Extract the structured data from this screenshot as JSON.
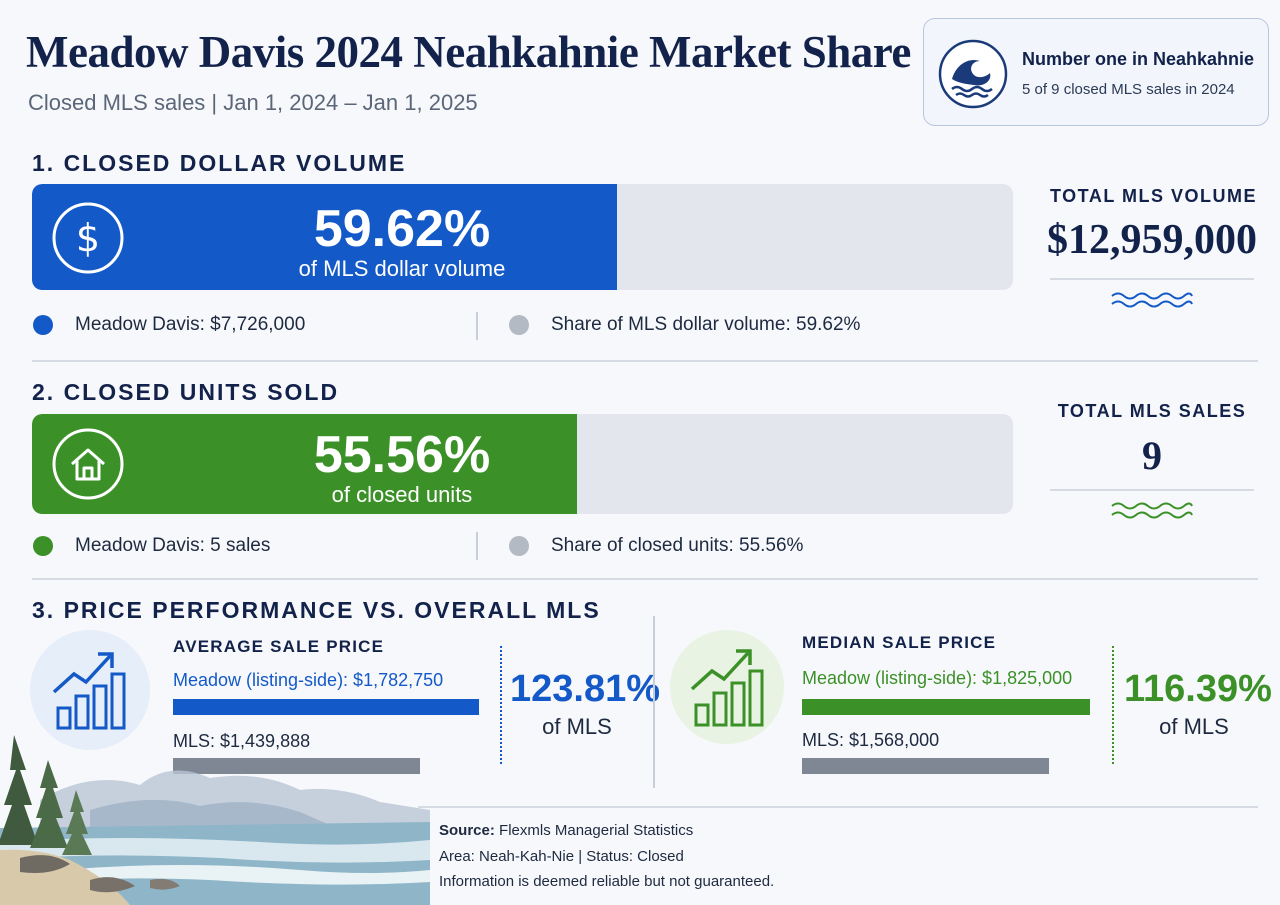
{
  "header": {
    "title": "Meadow Davis 2024  Neahkahnie Market Share",
    "subtitle": "Closed MLS sales  |  Jan 1, 2024 – Jan 1, 2025"
  },
  "badge": {
    "title": "Number one in Neahkahnie",
    "subtitle": "5 of 9 closed MLS sales in 2024",
    "icon": "wave-icon"
  },
  "colors": {
    "navy": "#12224a",
    "blue": "#1459c8",
    "green": "#3b9128",
    "track": "#e3e6ed",
    "mls_gray": "#7f8794"
  },
  "sections": {
    "volume": {
      "heading": "1. CLOSED DOLLAR VOLUME",
      "percent_text": "59.62%",
      "percent_caption": "of MLS dollar volume",
      "legend_primary": "Meadow Davis: $7,726,000",
      "legend_secondary": "Share of MLS dollar volume: 59.62%",
      "total_label": "TOTAL MLS VOLUME",
      "total_value": "$12,959,000",
      "icon": "dollar-icon"
    },
    "units": {
      "heading": "2. CLOSED UNITS SOLD",
      "percent_text": "55.56%",
      "percent_caption": "of closed units",
      "legend_primary": "Meadow Davis: 5 sales",
      "legend_secondary": "Share of closed units: 55.56%",
      "total_label": "TOTAL MLS SALES",
      "total_value": "9",
      "icon": "house-icon"
    },
    "price": {
      "heading": "3. PRICE PERFORMANCE VS. OVERALL MLS",
      "average": {
        "label": "AVERAGE SALE PRICE",
        "meadow_text": "Meadow (listing-side): $1,782,750",
        "mls_text": "MLS: $1,439,888",
        "ratio": "123.81%",
        "ratio_caption": "of MLS",
        "icon": "bar-chart-up-icon"
      },
      "median": {
        "label": "MEDIAN SALE PRICE",
        "meadow_text": "Meadow (listing-side): $1,825,000",
        "mls_text": "MLS: $1,568,000",
        "ratio": "116.39%",
        "ratio_caption": "of MLS",
        "icon": "bar-chart-up-icon"
      }
    }
  },
  "footer": {
    "source_label": "Source:",
    "source_value": "Flexmls Managerial Statistics",
    "area_line": "Area: Neah-Kah-Nie  |  Status: Closed",
    "disclaimer": "Information is deemed reliable but not guaranteed."
  },
  "chart_data": [
    {
      "type": "bar",
      "title": "1. CLOSED DOLLAR VOLUME",
      "categories": [
        "Meadow Davis share of MLS dollar volume"
      ],
      "values": [
        59.62
      ],
      "ylim": [
        0,
        100
      ],
      "meadow_value": 7726000,
      "total_value": 12959000
    },
    {
      "type": "bar",
      "title": "2. CLOSED UNITS SOLD",
      "categories": [
        "Meadow Davis share of closed units"
      ],
      "values": [
        55.56
      ],
      "ylim": [
        0,
        100
      ],
      "meadow_value": 5,
      "total_value": 9
    },
    {
      "type": "bar",
      "title": "AVERAGE SALE PRICE",
      "categories": [
        "Meadow (listing-side)",
        "MLS"
      ],
      "values": [
        1782750,
        1439888
      ],
      "ratio_percent": 123.81
    },
    {
      "type": "bar",
      "title": "MEDIAN SALE PRICE",
      "categories": [
        "Meadow (listing-side)",
        "MLS"
      ],
      "values": [
        1825000,
        1568000
      ],
      "ratio_percent": 116.39
    }
  ]
}
